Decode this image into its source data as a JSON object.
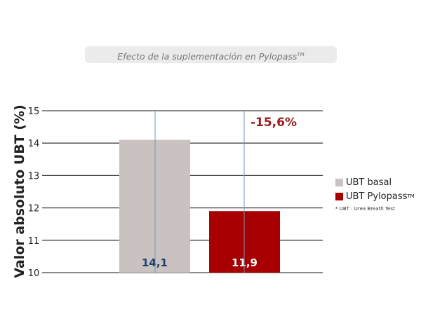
{
  "chart_data": {
    "type": "bar",
    "title": "Efecto de la suplementación en Pylopass",
    "title_sup": "TM",
    "ylabel": "Valor absoluto UBT (%)",
    "ylim": [
      10,
      15
    ],
    "yticks": [
      "10",
      "11",
      "12",
      "13",
      "14",
      "15"
    ],
    "grid": true,
    "categories": [
      "UBT basal",
      "UBT Pylopass"
    ],
    "values": [
      14.1,
      11.9
    ],
    "value_labels": [
      "14,1",
      "11,9"
    ],
    "colors": [
      "#c9c2c1",
      "#a80000"
    ],
    "value_label_colors": [
      "#1f3f73",
      "#ffffff"
    ],
    "annotation": "-15,6%",
    "annotation_color": "#9b1b1b",
    "legend": {
      "position": "right",
      "items": [
        {
          "label": "UBT basal",
          "sup": ""
        },
        {
          "label": "UBT Pylopass",
          "sup": "TM"
        }
      ],
      "note": "* UBT : Urea Breath Test"
    }
  }
}
